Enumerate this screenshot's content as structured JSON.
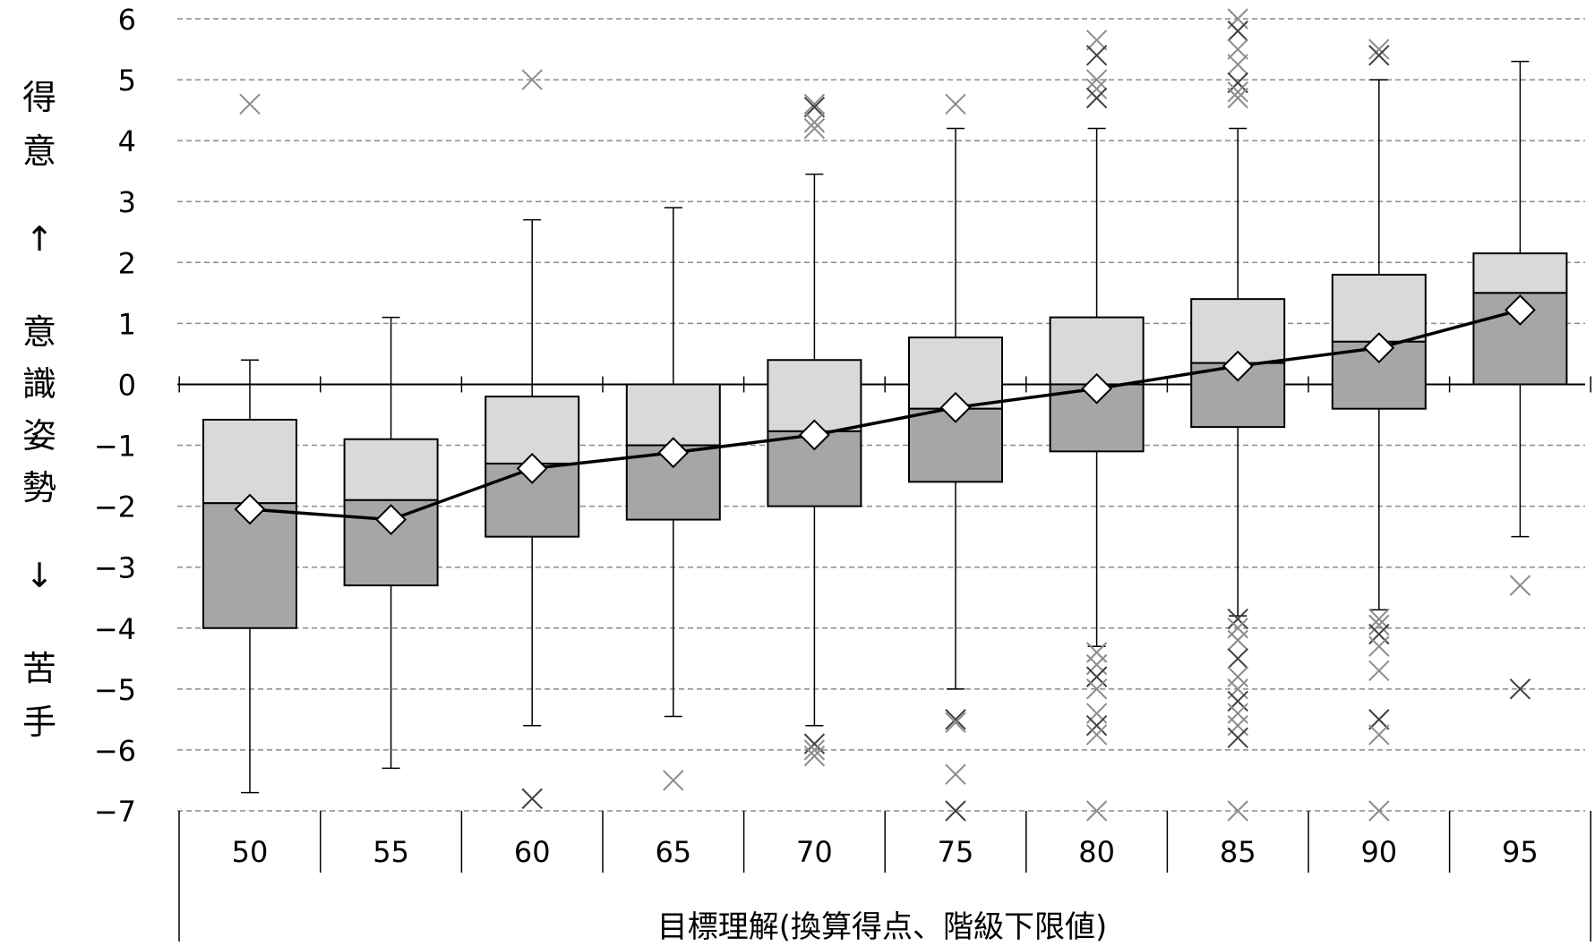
{
  "chart_data": {
    "type": "boxplot",
    "xlabel": "目標理解(換算得点、階級下限値)",
    "ylabel_chars": [
      "得",
      "意",
      "↑",
      "意",
      "識",
      "姿",
      "勢",
      "↓",
      "苦",
      "手"
    ],
    "ylim": [
      -7,
      6
    ],
    "yticks": [
      6,
      5,
      4,
      3,
      2,
      1,
      0,
      -1,
      -2,
      -3,
      -4,
      -5,
      -6,
      -7
    ],
    "grid": true,
    "categories": [
      "50",
      "55",
      "60",
      "65",
      "70",
      "75",
      "80",
      "85",
      "90",
      "95"
    ],
    "boxes": [
      {
        "category": "50",
        "whisker_low": -6.7,
        "q1": -4.0,
        "median": -1.95,
        "q3": -0.58,
        "whisker_high": 0.4,
        "mean": -2.05
      },
      {
        "category": "55",
        "whisker_low": -6.3,
        "q1": -3.3,
        "median": -1.9,
        "q3": -0.9,
        "whisker_high": 1.1,
        "mean": -2.22
      },
      {
        "category": "60",
        "whisker_low": -5.6,
        "q1": -2.5,
        "median": -1.3,
        "q3": -0.2,
        "whisker_high": 2.7,
        "mean": -1.38
      },
      {
        "category": "65",
        "whisker_low": -5.45,
        "q1": -2.22,
        "median": -1.0,
        "q3": 0.0,
        "whisker_high": 2.9,
        "mean": -1.12
      },
      {
        "category": "70",
        "whisker_low": -5.6,
        "q1": -2.0,
        "median": -0.77,
        "q3": 0.4,
        "whisker_high": 3.45,
        "mean": -0.83
      },
      {
        "category": "75",
        "whisker_low": -5.0,
        "q1": -1.6,
        "median": -0.4,
        "q3": 0.77,
        "whisker_high": 4.2,
        "mean": -0.38
      },
      {
        "category": "80",
        "whisker_low": -4.3,
        "q1": -1.1,
        "median": 0.0,
        "q3": 1.1,
        "whisker_high": 4.2,
        "mean": -0.07
      },
      {
        "category": "85",
        "whisker_low": -3.8,
        "q1": -0.7,
        "median": 0.35,
        "q3": 1.4,
        "whisker_high": 4.2,
        "mean": 0.3
      },
      {
        "category": "90",
        "whisker_low": -3.7,
        "q1": -0.4,
        "median": 0.7,
        "q3": 1.8,
        "whisker_high": 5.0,
        "mean": 0.6
      },
      {
        "category": "95",
        "whisker_low": -2.5,
        "q1": 0.0,
        "median": 1.5,
        "q3": 2.15,
        "whisker_high": 5.3,
        "mean": 1.22
      }
    ],
    "outliers": [
      {
        "category": "50",
        "values": [
          4.6
        ]
      },
      {
        "category": "60",
        "values": [
          5.0,
          -6.8
        ]
      },
      {
        "category": "65",
        "values": [
          -6.5
        ]
      },
      {
        "category": "70",
        "values": [
          4.6,
          4.55,
          4.3,
          4.2,
          -5.9,
          -6.0,
          -6.1
        ]
      },
      {
        "category": "75",
        "values": [
          4.6,
          -5.5,
          -5.55,
          -6.4,
          -7.0
        ]
      },
      {
        "category": "80",
        "values": [
          5.65,
          5.4,
          5.0,
          4.85,
          4.7,
          -4.4,
          -4.6,
          -4.8,
          -5.0,
          -5.4,
          -5.6,
          -5.75,
          -7.0
        ]
      },
      {
        "category": "85",
        "values": [
          6.0,
          5.8,
          5.5,
          5.25,
          4.95,
          4.8,
          4.7,
          -3.85,
          -4.0,
          -4.2,
          -4.5,
          -4.8,
          -5.0,
          -5.2,
          -5.4,
          -5.6,
          -5.8,
          -7.0
        ]
      },
      {
        "category": "90",
        "values": [
          5.5,
          5.4,
          -3.85,
          -3.95,
          -4.1,
          -4.3,
          -4.7,
          -5.5,
          -5.75,
          -7.0
        ]
      },
      {
        "category": "95",
        "values": [
          -3.3,
          -5.0
        ]
      }
    ],
    "colors": {
      "upper_box": "#d9d9d9",
      "lower_box": "#a6a6a6",
      "grid": "#8c8c8c",
      "outlier": "#8c8c8c",
      "outlier_dark": "#404040",
      "mean_line": "#000000"
    }
  }
}
